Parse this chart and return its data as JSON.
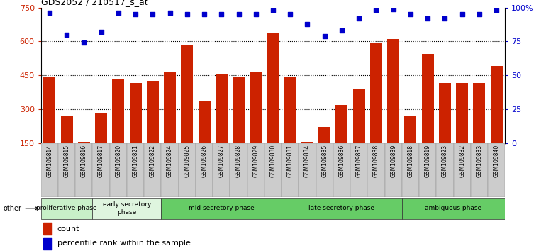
{
  "title": "GDS2052 / 210517_s_at",
  "categories": [
    "GSM109814",
    "GSM109815",
    "GSM109816",
    "GSM109817",
    "GSM109820",
    "GSM109821",
    "GSM109822",
    "GSM109824",
    "GSM109825",
    "GSM109826",
    "GSM109827",
    "GSM109828",
    "GSM109829",
    "GSM109830",
    "GSM109831",
    "GSM109834",
    "GSM109835",
    "GSM109836",
    "GSM109837",
    "GSM109838",
    "GSM109839",
    "GSM109818",
    "GSM109819",
    "GSM109823",
    "GSM109832",
    "GSM109833",
    "GSM109840"
  ],
  "bar_values": [
    440,
    270,
    155,
    285,
    435,
    415,
    425,
    465,
    585,
    335,
    455,
    445,
    465,
    635,
    445,
    155,
    220,
    320,
    390,
    595,
    610,
    270,
    545,
    415,
    415,
    415,
    490
  ],
  "percentile_values": [
    96,
    80,
    74,
    82,
    96,
    95,
    95,
    96,
    95,
    95,
    95,
    95,
    95,
    98,
    95,
    88,
    79,
    83,
    92,
    98,
    99,
    95,
    92,
    92,
    95,
    95,
    98
  ],
  "phases": [
    {
      "label": "proliferative phase",
      "start": 0,
      "end": 3,
      "color": "#c8f0c8"
    },
    {
      "label": "early secretory\nphase",
      "start": 3,
      "end": 7,
      "color": "#dff5df"
    },
    {
      "label": "mid secretory phase",
      "start": 7,
      "end": 14,
      "color": "#66cc66"
    },
    {
      "label": "late secretory phase",
      "start": 14,
      "end": 21,
      "color": "#66cc66"
    },
    {
      "label": "ambiguous phase",
      "start": 21,
      "end": 27,
      "color": "#66cc66"
    }
  ],
  "other_label": "other",
  "bar_color": "#cc2200",
  "dot_color": "#0000cc",
  "left_ylim": [
    150,
    750
  ],
  "left_yticks": [
    150,
    300,
    450,
    600,
    750
  ],
  "right_ylim": [
    0,
    100
  ],
  "right_yticks": [
    0,
    25,
    50,
    75,
    100
  ],
  "right_yticklabels": [
    "0",
    "25",
    "50",
    "75",
    "100%"
  ],
  "bg_color": "#ffffff",
  "label_area_color": "#cccccc",
  "label_border_color": "#888888"
}
